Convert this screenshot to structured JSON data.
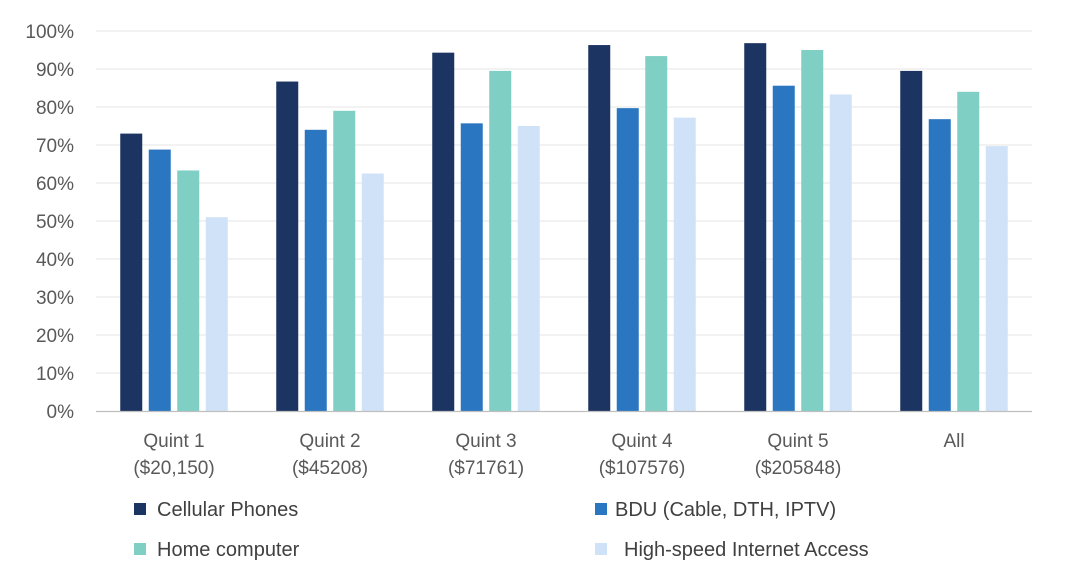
{
  "chart_data": {
    "type": "bar",
    "categories": [
      [
        "Quint 1",
        "($20,150)"
      ],
      [
        "Quint 2",
        "($45208)"
      ],
      [
        "Quint 3",
        "($71761)"
      ],
      [
        "Quint 4",
        "($107576)"
      ],
      [
        "Quint 5",
        "($205848)"
      ],
      [
        "All"
      ]
    ],
    "series": [
      {
        "name": "Cellular Phones",
        "color": "#1b3461",
        "values": [
          73,
          86.7,
          94.3,
          96.3,
          96.8,
          89.5
        ]
      },
      {
        "name": "BDU (Cable, DTH, IPTV)",
        "color": "#2a76c0",
        "values": [
          68.8,
          74,
          75.7,
          79.7,
          85.6,
          76.8
        ]
      },
      {
        "name": "Home computer",
        "color": "#7fcfc4",
        "values": [
          63.3,
          79,
          89.5,
          93.4,
          95,
          84
        ]
      },
      {
        "name": "High-speed Internet Access",
        "color": "#cfe2f7",
        "values": [
          51,
          62.5,
          75,
          77.2,
          83.3,
          69.7
        ]
      }
    ],
    "yticks": [
      "0%",
      "10%",
      "20%",
      "30%",
      "40%",
      "50%",
      "60%",
      "70%",
      "80%",
      "90%",
      "100%"
    ],
    "ylim": [
      0,
      100
    ],
    "title": "",
    "xlabel": "",
    "ylabel": "",
    "grid": true,
    "legend_position": "bottom"
  }
}
